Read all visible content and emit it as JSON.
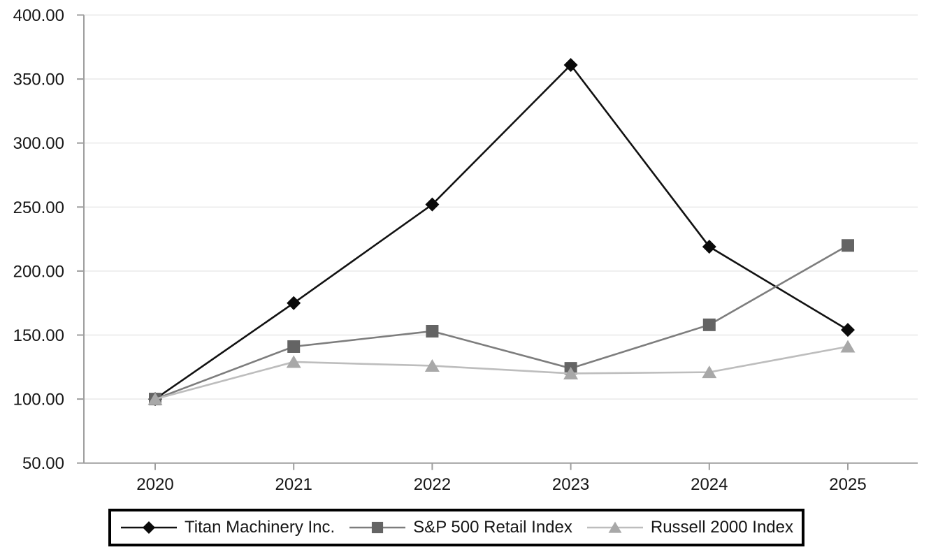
{
  "chart_data": {
    "type": "line",
    "title": "",
    "xlabel": "",
    "ylabel": "",
    "categories": [
      "2020",
      "2021",
      "2022",
      "2023",
      "2024",
      "2025"
    ],
    "series": [
      {
        "name": "Titan Machinery Inc.",
        "marker": "diamond",
        "marker_color": "#0a0a0a",
        "line_color": "#111111",
        "values": [
          100,
          175,
          252,
          361,
          219,
          154
        ]
      },
      {
        "name": "S&P 500 Retail Index",
        "marker": "square",
        "marker_color": "#646464",
        "line_color": "#7d7d7d",
        "values": [
          100,
          141,
          153,
          124,
          158,
          220
        ]
      },
      {
        "name": "Russell 2000 Index",
        "marker": "triangle",
        "marker_color": "#a8a8a8",
        "line_color": "#bdbdbd",
        "values": [
          100,
          129,
          126,
          120,
          121,
          141
        ]
      }
    ],
    "ylim": [
      50,
      400
    ],
    "ytick_step": 50,
    "ytick_labels": [
      "400.00",
      "350.00",
      "300.00",
      "250.00",
      "200.00",
      "150.00",
      "100.00",
      "50.00"
    ],
    "grid": true,
    "legend_position": "bottom",
    "colors": {
      "axis": "#9e9e9e",
      "grid": "#e7e7e7",
      "text": "#161616",
      "legend_border": "#000000",
      "background": "#ffffff"
    }
  }
}
